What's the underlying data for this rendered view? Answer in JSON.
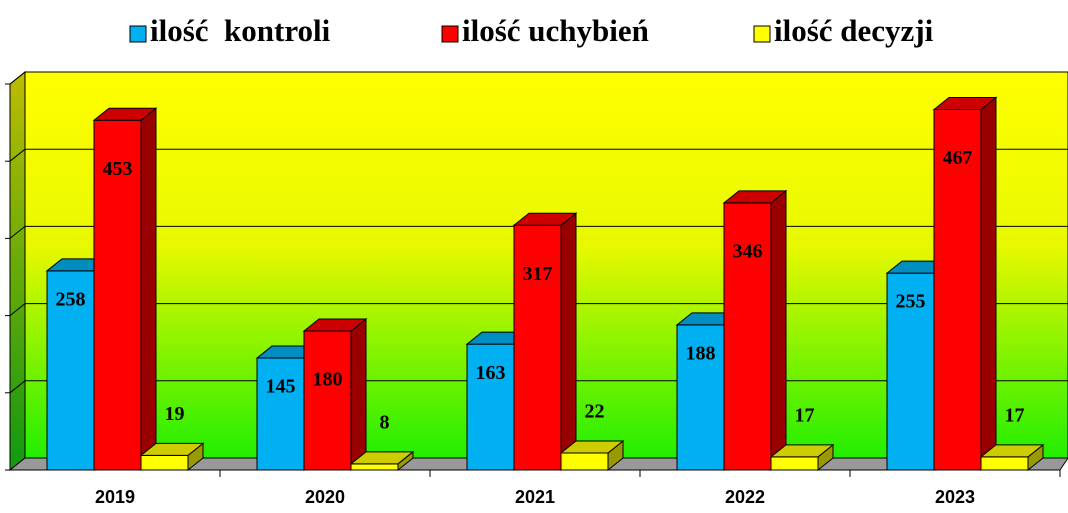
{
  "chart_data": {
    "type": "bar3d",
    "categories": [
      "2019",
      "2020",
      "2021",
      "2022",
      "2023"
    ],
    "series": [
      {
        "name": "ilość  kontroli",
        "color": "#00b0f0",
        "values": [
          258,
          145,
          163,
          188,
          255
        ]
      },
      {
        "name": "ilość uchybień",
        "color": "#ff0000",
        "values": [
          453,
          180,
          317,
          346,
          467
        ]
      },
      {
        "name": "ilość decyzji",
        "color": "#ffff00",
        "values": [
          19,
          8,
          22,
          17,
          17
        ]
      }
    ],
    "ylim": [
      0,
      500
    ],
    "yticks": [
      0,
      100,
      200,
      300,
      400,
      500
    ],
    "grid": true,
    "legend": "top"
  }
}
